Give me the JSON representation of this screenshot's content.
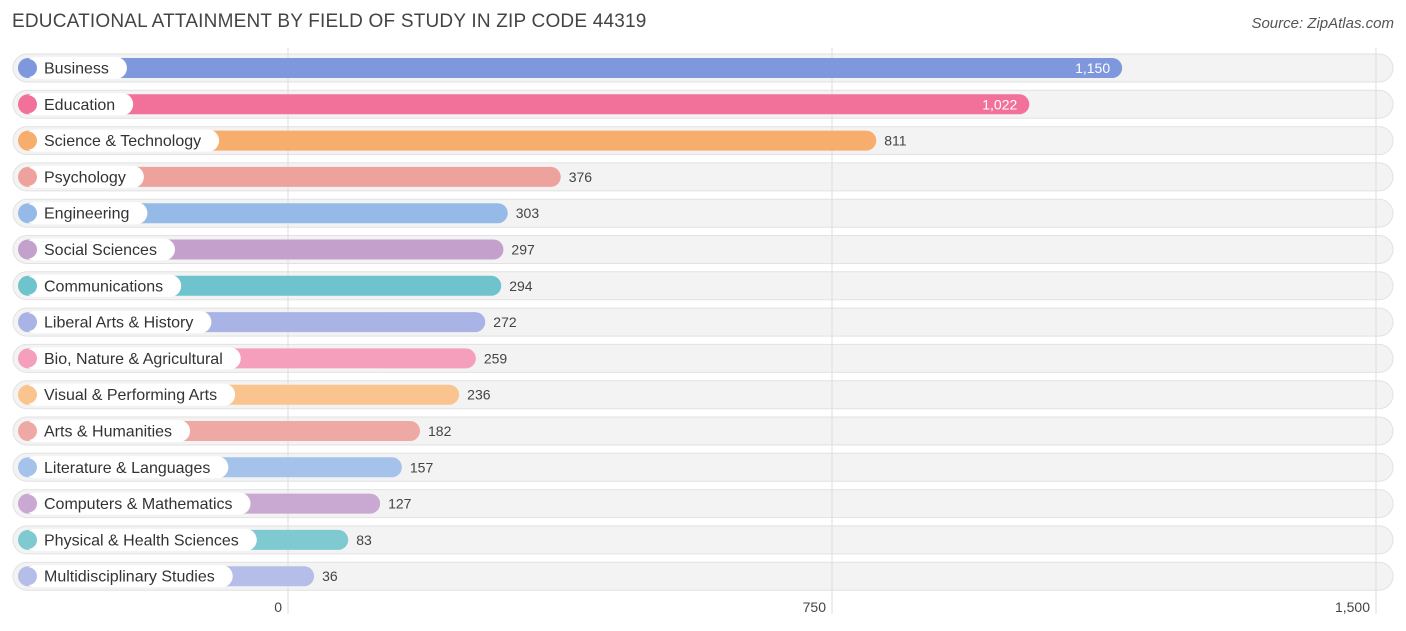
{
  "title": "EDUCATIONAL ATTAINMENT BY FIELD OF STUDY IN ZIP CODE 44319",
  "source": "Source: ZipAtlas.com",
  "chart_data": {
    "type": "bar",
    "orientation": "horizontal",
    "title": "EDUCATIONAL ATTAINMENT BY FIELD OF STUDY IN ZIP CODE 44319",
    "xlim": [
      0,
      1500
    ],
    "ticks": [
      0,
      750,
      1500
    ],
    "tick_labels": [
      "0",
      "750",
      "1,500"
    ],
    "grid": true,
    "categories": [
      "Business",
      "Education",
      "Science & Technology",
      "Psychology",
      "Engineering",
      "Social Sciences",
      "Communications",
      "Liberal Arts & History",
      "Bio, Nature & Agricultural",
      "Visual & Performing Arts",
      "Arts & Humanities",
      "Literature & Languages",
      "Computers & Mathematics",
      "Physical & Health Sciences",
      "Multidisciplinary Studies"
    ],
    "values": [
      1150,
      1022,
      811,
      376,
      303,
      297,
      294,
      272,
      259,
      236,
      182,
      157,
      127,
      83,
      36
    ],
    "value_labels": [
      "1,150",
      "1,022",
      "811",
      "376",
      "303",
      "297",
      "294",
      "272",
      "259",
      "236",
      "182",
      "157",
      "127",
      "83",
      "36"
    ],
    "colors": [
      "#7f97dc",
      "#f2719b",
      "#f7ad6c",
      "#eda29d",
      "#95bae7",
      "#c4a0cc",
      "#6ec3cc",
      "#aab3e6",
      "#f59fbc",
      "#f9c48e",
      "#efa9a4",
      "#a5c3ea",
      "#c9a9d2",
      "#7ecad0",
      "#b5bde9"
    ]
  }
}
